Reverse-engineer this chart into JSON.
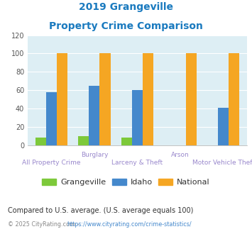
{
  "title_line1": "2019 Grangeville",
  "title_line2": "Property Crime Comparison",
  "title_color": "#1a7abf",
  "grangeville": [
    8,
    10,
    8,
    0,
    0
  ],
  "idaho": [
    58,
    65,
    60,
    0,
    41
  ],
  "national": [
    100,
    100,
    100,
    100,
    100
  ],
  "grangeville_color": "#7dc93a",
  "idaho_color": "#4488cc",
  "national_color": "#f5a623",
  "bg_color": "#ddeef4",
  "ylim": [
    0,
    120
  ],
  "yticks": [
    0,
    20,
    40,
    60,
    80,
    100,
    120
  ],
  "top_labels": [
    "",
    "Burglary",
    "",
    "Arson",
    ""
  ],
  "bot_labels": [
    "All Property Crime",
    "",
    "Larceny & Theft",
    "",
    "Motor Vehicle Theft"
  ],
  "label_color": "#9988cc",
  "footnote": "Compared to U.S. average. (U.S. average equals 100)",
  "footnote_color": "#333333",
  "footnote2_prefix": "© 2025 CityRating.com - ",
  "footnote2_link": "https://www.cityrating.com/crime-statistics/",
  "footnote2_color": "#888888",
  "footnote2_link_color": "#4488cc"
}
